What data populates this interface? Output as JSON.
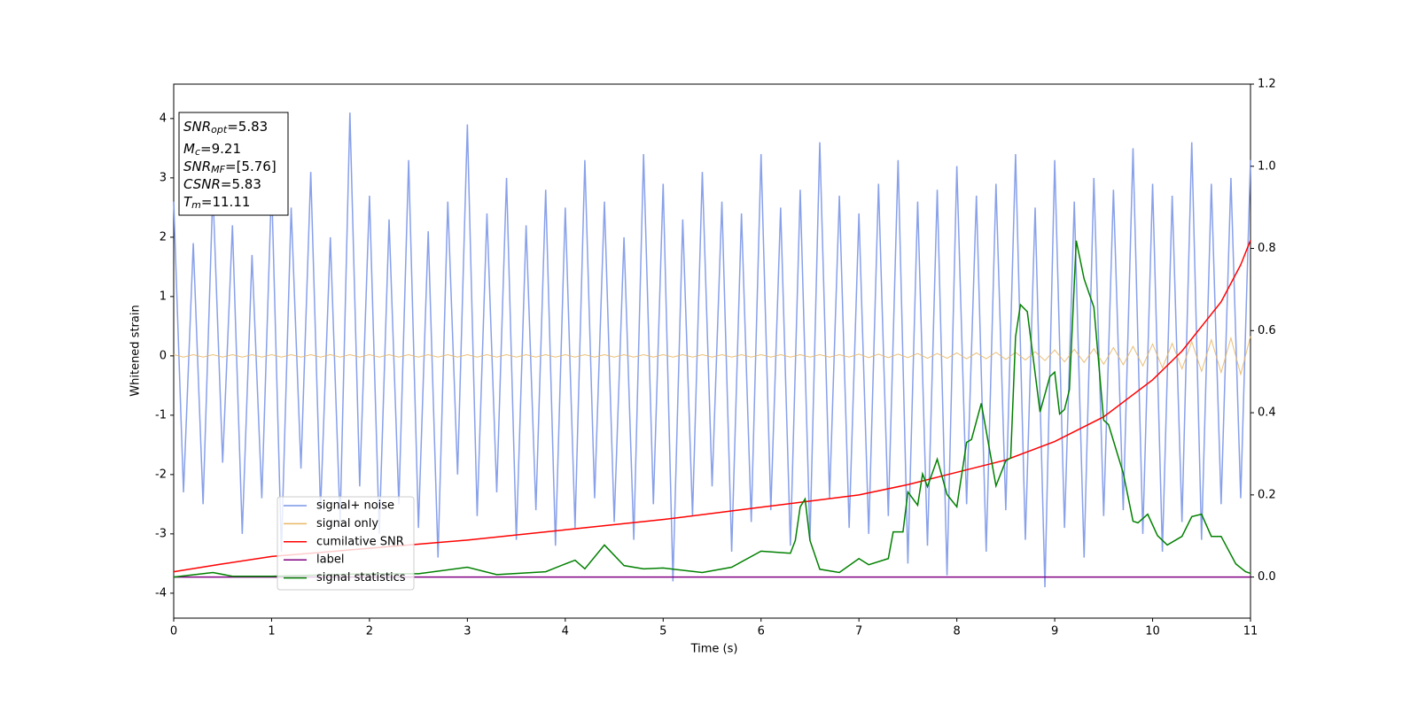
{
  "chart_data": {
    "type": "line",
    "xlabel": "Time (s)",
    "ylabel": "Whitened strain",
    "xlim": [
      0,
      11
    ],
    "xticks": [
      0,
      1,
      2,
      3,
      4,
      5,
      6,
      7,
      8,
      9,
      10,
      11
    ],
    "ylim": [
      -4.42,
      4.58
    ],
    "yticks": [
      -4,
      -3,
      -2,
      -1,
      0,
      1,
      2,
      3,
      4
    ],
    "y2lim": [
      -0.1,
      1.2
    ],
    "y2ticks": [
      {
        "value": 0,
        "label": "0.0"
      },
      0.2,
      0.4,
      0.6,
      0.8,
      {
        "value": 1,
        "label": "1.0"
      },
      1.2
    ],
    "legend": "lower left",
    "annotations": [
      {
        "main": "SNR",
        "sub": "opt",
        "rest": "=5.83"
      },
      {
        "main": "M",
        "sub": "c",
        "rest": "=9.21"
      },
      {
        "main": "SNR",
        "sub": "MF",
        "rest": "=[5.76]"
      },
      {
        "main": "CSNR",
        "sub": null,
        "rest": "=5.83"
      },
      {
        "main": "T",
        "sub": "m",
        "rest": "=11.11"
      }
    ],
    "x": [
      0,
      0.1,
      0.2,
      0.3,
      0.4,
      0.5,
      0.6,
      0.7,
      0.8,
      0.9,
      1,
      1.1,
      1.2,
      1.3,
      1.4,
      1.5,
      1.6,
      1.7,
      1.8,
      1.9,
      2,
      2.1,
      2.2,
      2.3,
      2.4,
      2.5,
      2.6,
      2.7,
      2.8,
      2.9,
      3,
      3.1,
      3.2,
      3.3,
      3.4,
      3.5,
      3.6,
      3.7,
      3.8,
      3.9,
      4,
      4.1,
      4.2,
      4.3,
      4.4,
      4.5,
      4.6,
      4.7,
      4.8,
      4.9,
      5,
      5.1,
      5.2,
      5.3,
      5.4,
      5.5,
      5.6,
      5.7,
      5.8,
      5.9,
      6,
      6.1,
      6.2,
      6.3,
      6.4,
      6.5,
      6.6,
      6.7,
      6.8,
      6.9,
      7,
      7.1,
      7.2,
      7.3,
      7.4,
      7.5,
      7.6,
      7.7,
      7.8,
      7.9,
      8,
      8.1,
      8.2,
      8.3,
      8.4,
      8.5,
      8.6,
      8.7,
      8.8,
      8.9,
      9,
      9.1,
      9.2,
      9.3,
      9.4,
      9.5,
      9.6,
      9.7,
      9.8,
      9.9,
      10,
      10.1,
      10.2,
      10.3,
      10.4,
      10.5,
      10.6,
      10.7,
      10.8,
      10.9,
      11
    ],
    "series": [
      {
        "name": "signal+ noise",
        "color": "#7b96e8",
        "values": [
          2.6,
          -2.3,
          1.9,
          -2.5,
          2.8,
          -1.8,
          2.2,
          -3.0,
          1.7,
          -2.4,
          2.9,
          -3.3,
          2.5,
          -1.9,
          3.1,
          -2.6,
          2.0,
          -2.8,
          4.1,
          -2.2,
          2.7,
          -3.0,
          2.3,
          -2.5,
          3.3,
          -2.9,
          2.1,
          -3.4,
          2.6,
          -2.0,
          3.9,
          -2.7,
          2.4,
          -2.3,
          3.0,
          -3.1,
          2.2,
          -2.6,
          2.8,
          -3.2,
          2.5,
          -2.9,
          3.3,
          -2.4,
          2.6,
          -2.8,
          2.0,
          -3.1,
          3.4,
          -2.5,
          2.9,
          -3.8,
          2.3,
          -2.7,
          3.1,
          -2.2,
          2.6,
          -3.3,
          2.4,
          -2.8,
          3.4,
          -2.6,
          2.5,
          -3.2,
          2.8,
          -3.1,
          3.6,
          -2.4,
          2.7,
          -2.9,
          2.4,
          -3.0,
          2.9,
          -2.7,
          3.3,
          -3.5,
          2.6,
          -3.2,
          2.8,
          -3.7,
          3.2,
          -2.5,
          2.7,
          -3.3,
          2.9,
          -2.6,
          3.4,
          -3.1,
          2.5,
          -3.9,
          3.3,
          -2.9,
          2.6,
          -3.4,
          3.0,
          -2.7,
          2.8,
          -2.6,
          3.5,
          -3.0,
          2.9,
          -3.3,
          2.7,
          -2.8,
          3.6,
          -3.1,
          2.9,
          -2.5,
          3.0,
          -2.4,
          3.3
        ]
      },
      {
        "name": "signal only",
        "color": "#e8b868",
        "values": [
          0.02,
          -0.02,
          0.02,
          -0.02,
          0.02,
          -0.02,
          0.02,
          -0.02,
          0.02,
          -0.02,
          0.02,
          -0.02,
          0.02,
          -0.02,
          0.02,
          -0.02,
          0.02,
          -0.02,
          0.02,
          -0.02,
          0.02,
          -0.02,
          0.02,
          -0.02,
          0.02,
          -0.02,
          0.02,
          -0.02,
          0.02,
          -0.02,
          0.02,
          -0.02,
          0.02,
          -0.02,
          0.02,
          -0.02,
          0.02,
          -0.02,
          0.02,
          -0.02,
          0.02,
          -0.02,
          0.02,
          -0.02,
          0.02,
          -0.02,
          0.02,
          -0.02,
          0.02,
          -0.02,
          0.02,
          -0.02,
          0.02,
          -0.02,
          0.02,
          -0.02,
          0.02,
          -0.02,
          0.02,
          -0.02,
          0.02,
          -0.02,
          0.02,
          -0.02,
          0.02,
          -0.02,
          0.02,
          -0.02,
          0.02,
          -0.02,
          0.03,
          -0.03,
          0.03,
          -0.03,
          0.03,
          -0.03,
          0.04,
          -0.04,
          0.04,
          -0.04,
          0.05,
          -0.05,
          0.05,
          -0.05,
          0.06,
          -0.06,
          0.06,
          -0.07,
          0.07,
          -0.08,
          0.1,
          -0.1,
          0.11,
          -0.11,
          0.12,
          -0.14,
          0.14,
          -0.15,
          0.16,
          -0.17,
          0.2,
          -0.2,
          0.21,
          -0.22,
          0.24,
          -0.26,
          0.27,
          -0.28,
          0.3,
          -0.31,
          0.33
        ]
      },
      {
        "name": "cumilative SNR",
        "color": "#ff0000",
        "axis": "y2",
        "x": [
          0,
          0.5,
          1,
          2,
          3,
          4,
          5,
          6,
          7,
          7.5,
          8,
          8.5,
          9,
          9.5,
          10,
          10.3,
          10.5,
          10.7,
          10.9,
          11
        ],
        "values": [
          0.013,
          0.032,
          0.05,
          0.07,
          0.09,
          0.115,
          0.14,
          0.17,
          0.2,
          0.225,
          0.255,
          0.285,
          0.33,
          0.39,
          0.48,
          0.55,
          0.61,
          0.67,
          0.76,
          0.82
        ]
      },
      {
        "name": "label",
        "color": "#800080",
        "axis": "y2",
        "x": [
          0,
          11
        ],
        "values": [
          0,
          0
        ]
      },
      {
        "name": "signal statistics",
        "color": "#008000",
        "axis": "y2",
        "x": [
          0,
          0.4,
          0.6,
          1,
          2,
          2.5,
          3,
          3.3,
          3.8,
          4,
          4.1,
          4.2,
          4.4,
          4.6,
          4.8,
          5,
          5.4,
          5.7,
          6,
          6.3,
          6.35,
          6.4,
          6.45,
          6.5,
          6.6,
          6.8,
          7,
          7.1,
          7.3,
          7.35,
          7.45,
          7.5,
          7.6,
          7.65,
          7.7,
          7.8,
          7.9,
          8,
          8.1,
          8.15,
          8.25,
          8.4,
          8.5,
          8.55,
          8.6,
          8.65,
          8.72,
          8.85,
          8.95,
          9,
          9.05,
          9.1,
          9.15,
          9.22,
          9.3,
          9.4,
          9.5,
          9.55,
          9.7,
          9.8,
          9.85,
          9.95,
          10.05,
          10.15,
          10.3,
          10.4,
          10.5,
          10.6,
          10.7,
          10.85,
          10.95,
          11
        ],
        "values": [
          0,
          0.011,
          0.002,
          0.002,
          0.008,
          0.008,
          0.024,
          0.006,
          0.013,
          0.032,
          0.041,
          0.02,
          0.078,
          0.028,
          0.02,
          0.022,
          0.011,
          0.024,
          0.063,
          0.058,
          0.089,
          0.171,
          0.19,
          0.089,
          0.019,
          0.011,
          0.045,
          0.03,
          0.045,
          0.11,
          0.11,
          0.207,
          0.175,
          0.251,
          0.22,
          0.287,
          0.201,
          0.171,
          0.328,
          0.335,
          0.423,
          0.222,
          0.283,
          0.29,
          0.585,
          0.663,
          0.646,
          0.402,
          0.488,
          0.499,
          0.397,
          0.408,
          0.456,
          0.819,
          0.726,
          0.657,
          0.382,
          0.371,
          0.253,
          0.136,
          0.132,
          0.153,
          0.101,
          0.078,
          0.099,
          0.147,
          0.153,
          0.099,
          0.099,
          0.032,
          0.013,
          0.009
        ]
      }
    ]
  }
}
